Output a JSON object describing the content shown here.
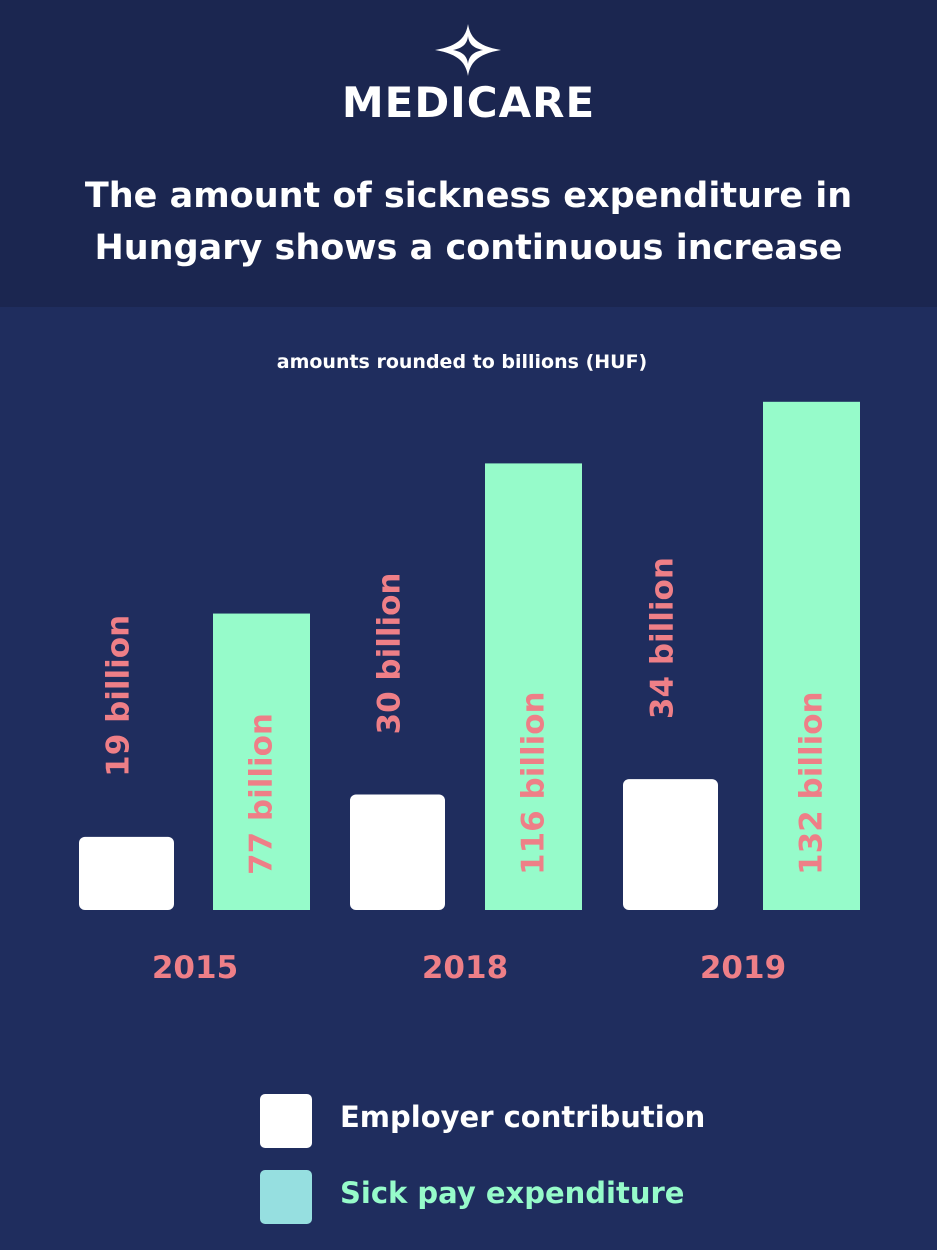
{
  "brand": {
    "name": "MEDICARE",
    "logo_icon": "medicare-star-icon"
  },
  "title": "The amount of sickness expenditure in Hungary shows a continuous increase",
  "subtitle": "amounts rounded to billions (HUF)",
  "colors": {
    "header_bg": "#1b2650",
    "page_bg": "#1f2d5e",
    "employer": "#ffffff",
    "sick_pay": "#96fbca",
    "legend_sick_pay_swatch": "#96dfe0",
    "label": "#ee7f87"
  },
  "chart_data": {
    "type": "bar",
    "categories": [
      "2015",
      "2018",
      "2019"
    ],
    "series": [
      {
        "name": "Employer contribution",
        "values": [
          19,
          30,
          34
        ],
        "labels": [
          "19 billion",
          "30 billion",
          "34 billion"
        ]
      },
      {
        "name": "Sick pay expenditure",
        "values": [
          77,
          116,
          132
        ],
        "labels": [
          "77 billion",
          "116 billion",
          "132 billion"
        ]
      }
    ],
    "unit": "billion HUF",
    "grid": false,
    "legend": "bottom"
  },
  "legend": [
    {
      "label": "Employer contribution"
    },
    {
      "label": "Sick pay expenditure"
    }
  ]
}
